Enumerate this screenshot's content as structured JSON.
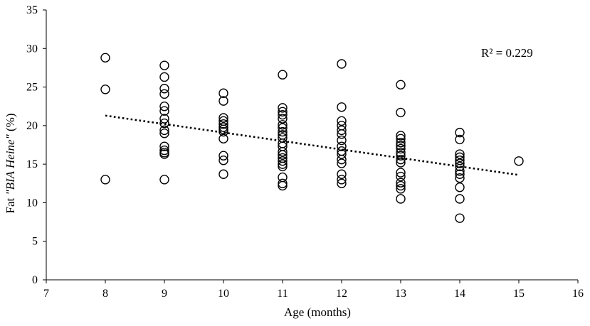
{
  "chart_data": {
    "type": "scatter",
    "title": "",
    "xlabel": "Age (months)",
    "ylabel": {
      "prefix": "Fat ",
      "emph": "\"BIA Heine\"",
      "suffix": " (%)"
    },
    "xlim": [
      7,
      16
    ],
    "ylim": [
      0,
      35
    ],
    "x_ticks": [
      7,
      8,
      9,
      10,
      11,
      12,
      13,
      14,
      15,
      16
    ],
    "y_ticks": [
      0,
      5,
      10,
      15,
      20,
      25,
      30,
      35
    ],
    "grid": false,
    "annotation": "R² = 0.229",
    "trendline": {
      "type": "linear",
      "x": [
        8,
        15
      ],
      "y": [
        21.3,
        13.6
      ]
    },
    "series": [
      {
        "name": "Fat BIA Heine",
        "points": [
          [
            8,
            28.8
          ],
          [
            8,
            24.7
          ],
          [
            8,
            13.0
          ],
          [
            9,
            27.8
          ],
          [
            9,
            26.3
          ],
          [
            9,
            24.8
          ],
          [
            9,
            24.1
          ],
          [
            9,
            22.5
          ],
          [
            9,
            21.9
          ],
          [
            9,
            20.9
          ],
          [
            9,
            20.3
          ],
          [
            9,
            19.4
          ],
          [
            9,
            19.0
          ],
          [
            9,
            17.3
          ],
          [
            9,
            16.8
          ],
          [
            9,
            16.5
          ],
          [
            9,
            16.3
          ],
          [
            9,
            13.0
          ],
          [
            10,
            24.2
          ],
          [
            10,
            23.2
          ],
          [
            10,
            21.0
          ],
          [
            10,
            20.6
          ],
          [
            10,
            20.2
          ],
          [
            10,
            19.8
          ],
          [
            10,
            19.5
          ],
          [
            10,
            19.2
          ],
          [
            10,
            18.3
          ],
          [
            10,
            16.1
          ],
          [
            10,
            15.5
          ],
          [
            10,
            13.7
          ],
          [
            11,
            26.6
          ],
          [
            11,
            22.3
          ],
          [
            11,
            21.8
          ],
          [
            11,
            21.4
          ],
          [
            11,
            20.9
          ],
          [
            11,
            20.1
          ],
          [
            11,
            19.7
          ],
          [
            11,
            19.2
          ],
          [
            11,
            18.8
          ],
          [
            11,
            18.4
          ],
          [
            11,
            17.7
          ],
          [
            11,
            17.3
          ],
          [
            11,
            16.6
          ],
          [
            11,
            16.2
          ],
          [
            11,
            15.8
          ],
          [
            11,
            15.4
          ],
          [
            11,
            15.0
          ],
          [
            11,
            14.7
          ],
          [
            11,
            13.3
          ],
          [
            11,
            12.5
          ],
          [
            11,
            12.2
          ],
          [
            12,
            28.0
          ],
          [
            12,
            22.4
          ],
          [
            12,
            20.6
          ],
          [
            12,
            20.0
          ],
          [
            12,
            19.4
          ],
          [
            12,
            18.9
          ],
          [
            12,
            18.1
          ],
          [
            12,
            17.3
          ],
          [
            12,
            16.7
          ],
          [
            12,
            16.3
          ],
          [
            12,
            15.6
          ],
          [
            12,
            15.1
          ],
          [
            12,
            13.7
          ],
          [
            12,
            13.0
          ],
          [
            12,
            12.5
          ],
          [
            13,
            25.3
          ],
          [
            13,
            21.7
          ],
          [
            13,
            18.7
          ],
          [
            13,
            18.3
          ],
          [
            13,
            17.8
          ],
          [
            13,
            17.4
          ],
          [
            13,
            17.0
          ],
          [
            13,
            16.5
          ],
          [
            13,
            16.1
          ],
          [
            13,
            15.6
          ],
          [
            13,
            15.2
          ],
          [
            13,
            13.9
          ],
          [
            13,
            13.4
          ],
          [
            13,
            12.6
          ],
          [
            13,
            12.2
          ],
          [
            13,
            11.8
          ],
          [
            13,
            10.5
          ],
          [
            14,
            19.1
          ],
          [
            14,
            18.2
          ],
          [
            14,
            16.3
          ],
          [
            14,
            15.9
          ],
          [
            14,
            15.5
          ],
          [
            14,
            15.1
          ],
          [
            14,
            14.7
          ],
          [
            14,
            14.1
          ],
          [
            14,
            13.7
          ],
          [
            14,
            13.2
          ],
          [
            14,
            12.0
          ],
          [
            14,
            10.5
          ],
          [
            14,
            8.0
          ],
          [
            15,
            15.4
          ]
        ]
      }
    ]
  }
}
